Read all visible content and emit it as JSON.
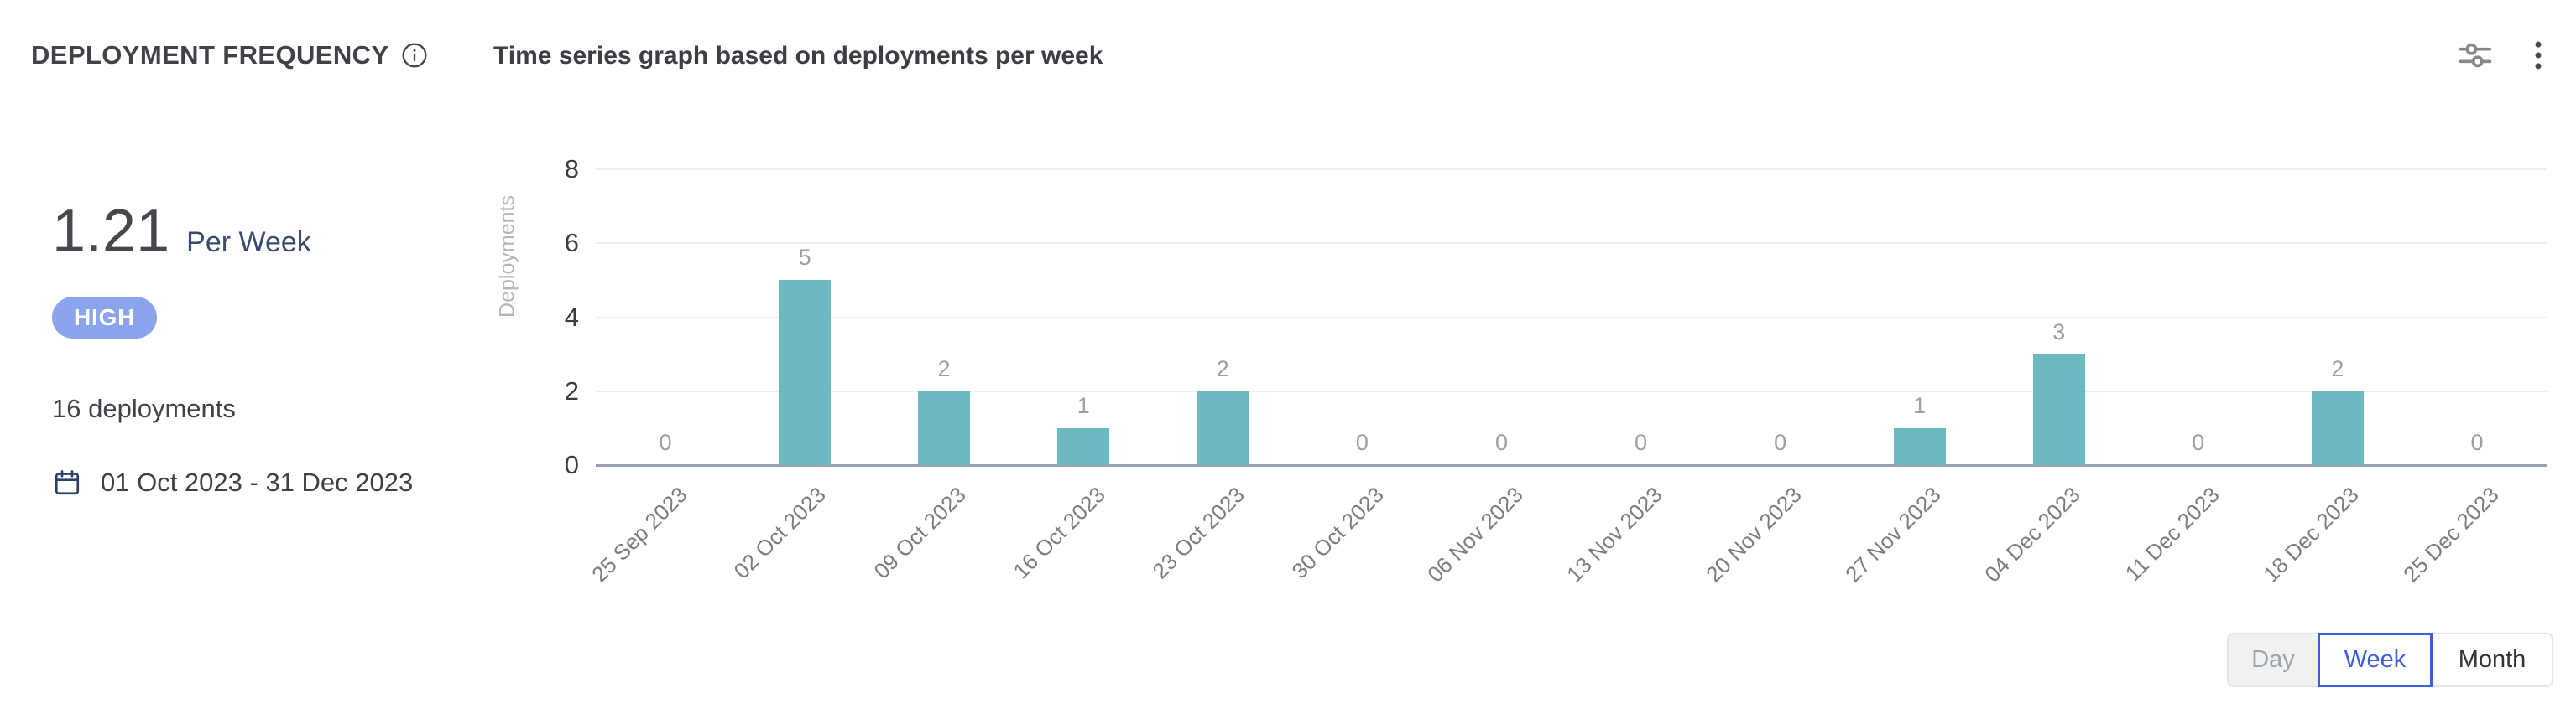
{
  "header": {
    "title": "DEPLOYMENT FREQUENCY",
    "chart_title": "Time series graph based on deployments per week"
  },
  "summary": {
    "rate_value": "1.21",
    "rate_unit": "Per Week",
    "level_badge": "HIGH",
    "total": "16 deployments",
    "date_range": "01 Oct 2023 - 31 Dec 2023"
  },
  "chart_data": {
    "type": "bar",
    "title": "Time series graph based on deployments per week",
    "categories": [
      "25 Sep 2023",
      "02 Oct 2023",
      "09 Oct 2023",
      "16 Oct 2023",
      "23 Oct 2023",
      "30 Oct 2023",
      "06 Nov 2023",
      "13 Nov 2023",
      "20 Nov 2023",
      "27 Nov 2023",
      "04 Dec 2023",
      "11 Dec 2023",
      "18 Dec 2023",
      "25 Dec 2023"
    ],
    "values": [
      0,
      5,
      2,
      1,
      2,
      0,
      0,
      0,
      0,
      1,
      3,
      0,
      2,
      0
    ],
    "xlabel": "",
    "ylabel": "Deployments",
    "ylim": [
      0,
      8
    ],
    "yticks": [
      0,
      2,
      4,
      6,
      8
    ],
    "grid": true,
    "legend": "none",
    "value_labels_shown": true,
    "x_labels_rotated_degrees": 45
  },
  "controls": {
    "granularity": [
      {
        "label": "Day",
        "state": "disabled"
      },
      {
        "label": "Week",
        "state": "selected"
      },
      {
        "label": "Month",
        "state": "default"
      }
    ]
  },
  "colors": {
    "bar": "#6db9c1",
    "badge_bg": "#8aa5ec",
    "badge_text": "#ffffff",
    "selected_toggle": "#3e5cdf",
    "rate_unit_text": "#3a4b6d",
    "baseline_axis": "#98a0af",
    "gridline": "#ededef"
  },
  "icons": {
    "title_info": "info-icon",
    "header_filter": "sliders-icon",
    "header_menu": "kebab-menu-icon",
    "date": "calendar-icon"
  }
}
